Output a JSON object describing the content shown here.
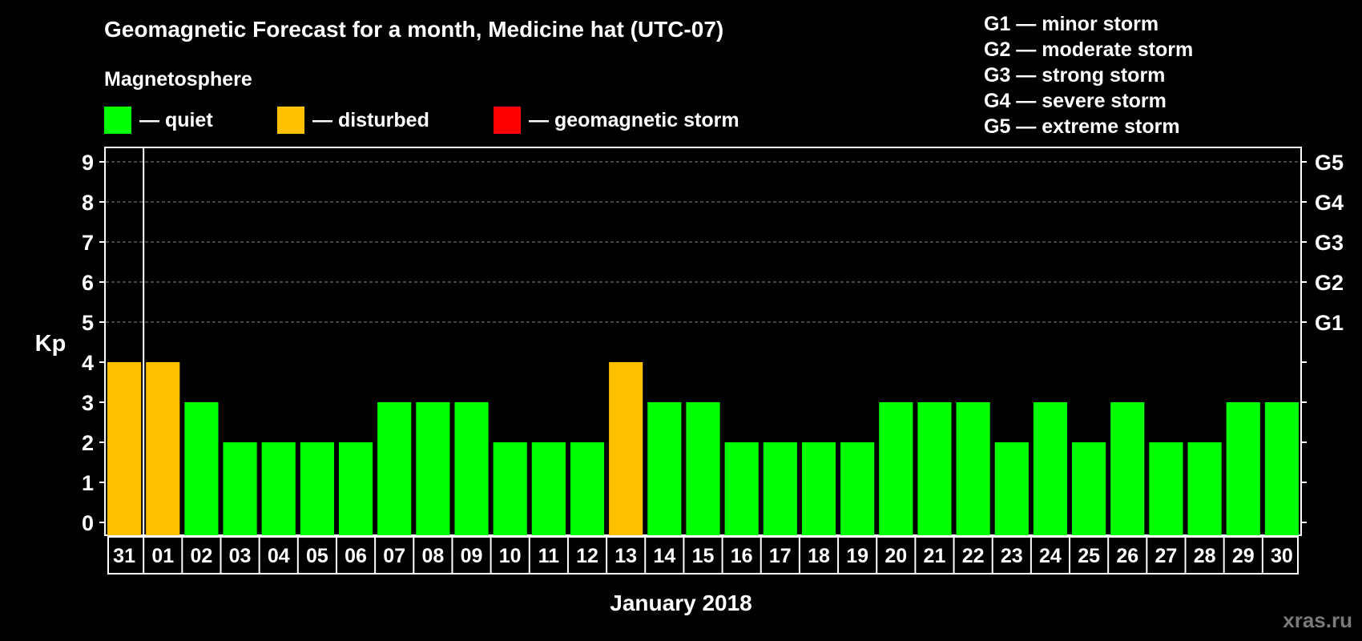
{
  "title": "Geomagnetic Forecast for a month, Medicine hat (UTC-07)",
  "magnetosphere_label": "Magnetosphere",
  "legend": [
    {
      "key": "quiet",
      "label": "— quiet",
      "color": "#00ff00"
    },
    {
      "key": "disturbed",
      "label": "— disturbed",
      "color": "#ffc000"
    },
    {
      "key": "storm",
      "label": "— geomagnetic storm",
      "color": "#ff0000"
    }
  ],
  "storm_scale": [
    "G1 — minor storm",
    "G2 — moderate storm",
    "G3 — strong storm",
    "G4 — severe storm",
    "G5 — extreme storm"
  ],
  "watermark": "xras.ru",
  "chart_data": {
    "type": "bar",
    "title": "Geomagnetic Forecast for a month, Medicine hat (UTC-07)",
    "xlabel": "January 2018",
    "ylabel": "Kp",
    "ylim": [
      0,
      9
    ],
    "yticks": [
      "0",
      "1",
      "2",
      "3",
      "4",
      "5",
      "6",
      "7",
      "8",
      "9"
    ],
    "right_axis_labels": [
      {
        "kp": 5,
        "label": "G1"
      },
      {
        "kp": 6,
        "label": "G2"
      },
      {
        "kp": 7,
        "label": "G3"
      },
      {
        "kp": 8,
        "label": "G4"
      },
      {
        "kp": 9,
        "label": "G5"
      }
    ],
    "grid": "dashed horizontal at Kp 5-9",
    "categories": [
      "31",
      "01",
      "02",
      "03",
      "04",
      "05",
      "06",
      "07",
      "08",
      "09",
      "10",
      "11",
      "12",
      "13",
      "14",
      "15",
      "16",
      "17",
      "18",
      "19",
      "20",
      "21",
      "22",
      "23",
      "24",
      "25",
      "26",
      "27",
      "28",
      "29",
      "30"
    ],
    "values": [
      4,
      4,
      3,
      2,
      2,
      2,
      2,
      3,
      3,
      3,
      2,
      2,
      2,
      4,
      3,
      3,
      2,
      2,
      2,
      2,
      3,
      3,
      3,
      2,
      3,
      2,
      3,
      2,
      2,
      3,
      3
    ],
    "color_rule": {
      "quiet": "Kp < 4",
      "disturbed": "Kp = 4",
      "storm": "Kp >= 5"
    },
    "colors": {
      "quiet": "#00ff00",
      "disturbed": "#ffc000",
      "storm": "#ff0000"
    }
  }
}
